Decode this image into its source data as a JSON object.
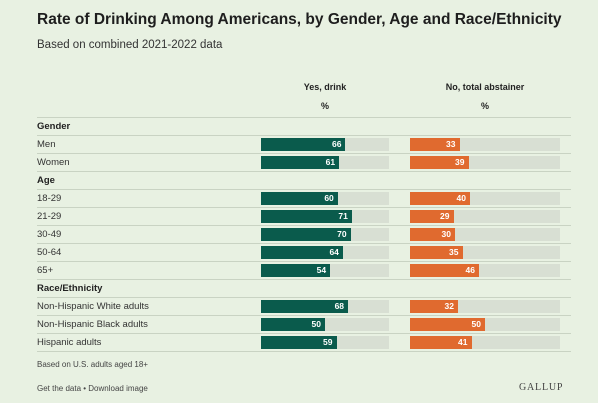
{
  "title": "Rate of Drinking Among Americans, by Gender, Age and Race/Ethnicity",
  "subtitle": "Based on combined 2021-2022 data",
  "footnote": "Based on U.S. adults aged 18+",
  "links": {
    "get_data": "Get the data",
    "separator": " • ",
    "download": "Download image"
  },
  "logo": "GALLUP",
  "colors": {
    "yes": "#0a5b4c",
    "no": "#e06a2f",
    "track": "#d8dfd3",
    "background": "#e8f1e2"
  },
  "chart_data": {
    "type": "bar",
    "series": [
      {
        "name": "Yes, drink",
        "unit": "%",
        "color": "#0a5b4c"
      },
      {
        "name": "No, total abstainer",
        "unit": "%",
        "color": "#e06a2f"
      }
    ],
    "xlim": [
      0,
      100
    ],
    "groups": [
      {
        "name": "Gender",
        "rows": [
          {
            "label": "Men",
            "values": [
              66,
              33
            ]
          },
          {
            "label": "Women",
            "values": [
              61,
              39
            ]
          }
        ]
      },
      {
        "name": "Age",
        "rows": [
          {
            "label": "18-29",
            "values": [
              60,
              40
            ]
          },
          {
            "label": "21-29",
            "values": [
              71,
              29
            ]
          },
          {
            "label": "30-49",
            "values": [
              70,
              30
            ]
          },
          {
            "label": "50-64",
            "values": [
              64,
              35
            ]
          },
          {
            "label": "65+",
            "values": [
              54,
              46
            ]
          }
        ]
      },
      {
        "name": "Race/Ethnicity",
        "rows": [
          {
            "label": "Non-Hispanic White adults",
            "values": [
              68,
              32
            ]
          },
          {
            "label": "Non-Hispanic Black adults",
            "values": [
              50,
              50
            ]
          },
          {
            "label": "Hispanic adults",
            "values": [
              59,
              41
            ]
          }
        ]
      }
    ]
  }
}
